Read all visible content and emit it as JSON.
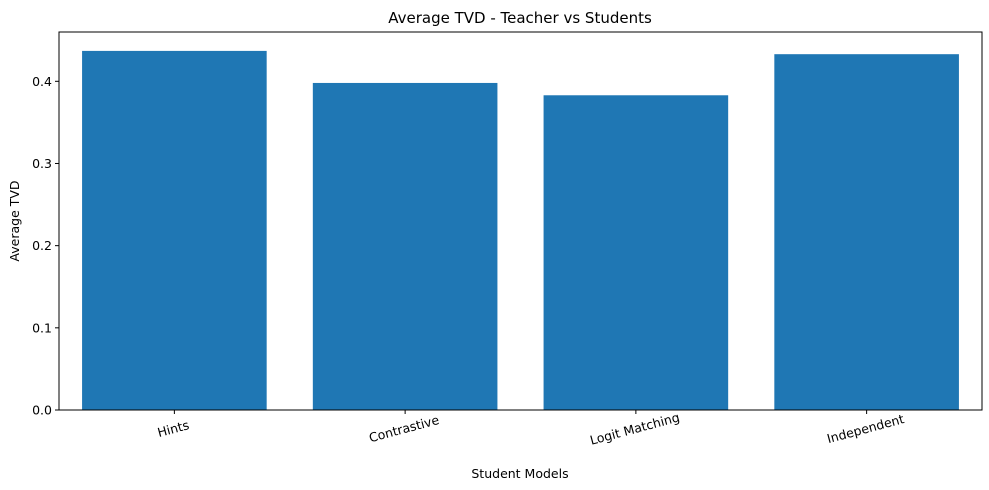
{
  "chart_data": {
    "type": "bar",
    "title": "Average TVD - Teacher vs Students",
    "xlabel": "Student Models",
    "ylabel": "Average TVD",
    "categories": [
      "Hints",
      "Contrastive",
      "Logit Matching",
      "Independent"
    ],
    "values": [
      0.437,
      0.398,
      0.383,
      0.433
    ],
    "ylim": [
      0,
      0.46
    ],
    "yticks": [
      0.0,
      0.1,
      0.2,
      0.3,
      0.4
    ],
    "ytick_labels": [
      "0.0",
      "0.1",
      "0.2",
      "0.3",
      "0.4"
    ],
    "bar_color": "#1f77b4",
    "xtick_rotation_deg": 15,
    "grid": false,
    "legend": "none"
  }
}
